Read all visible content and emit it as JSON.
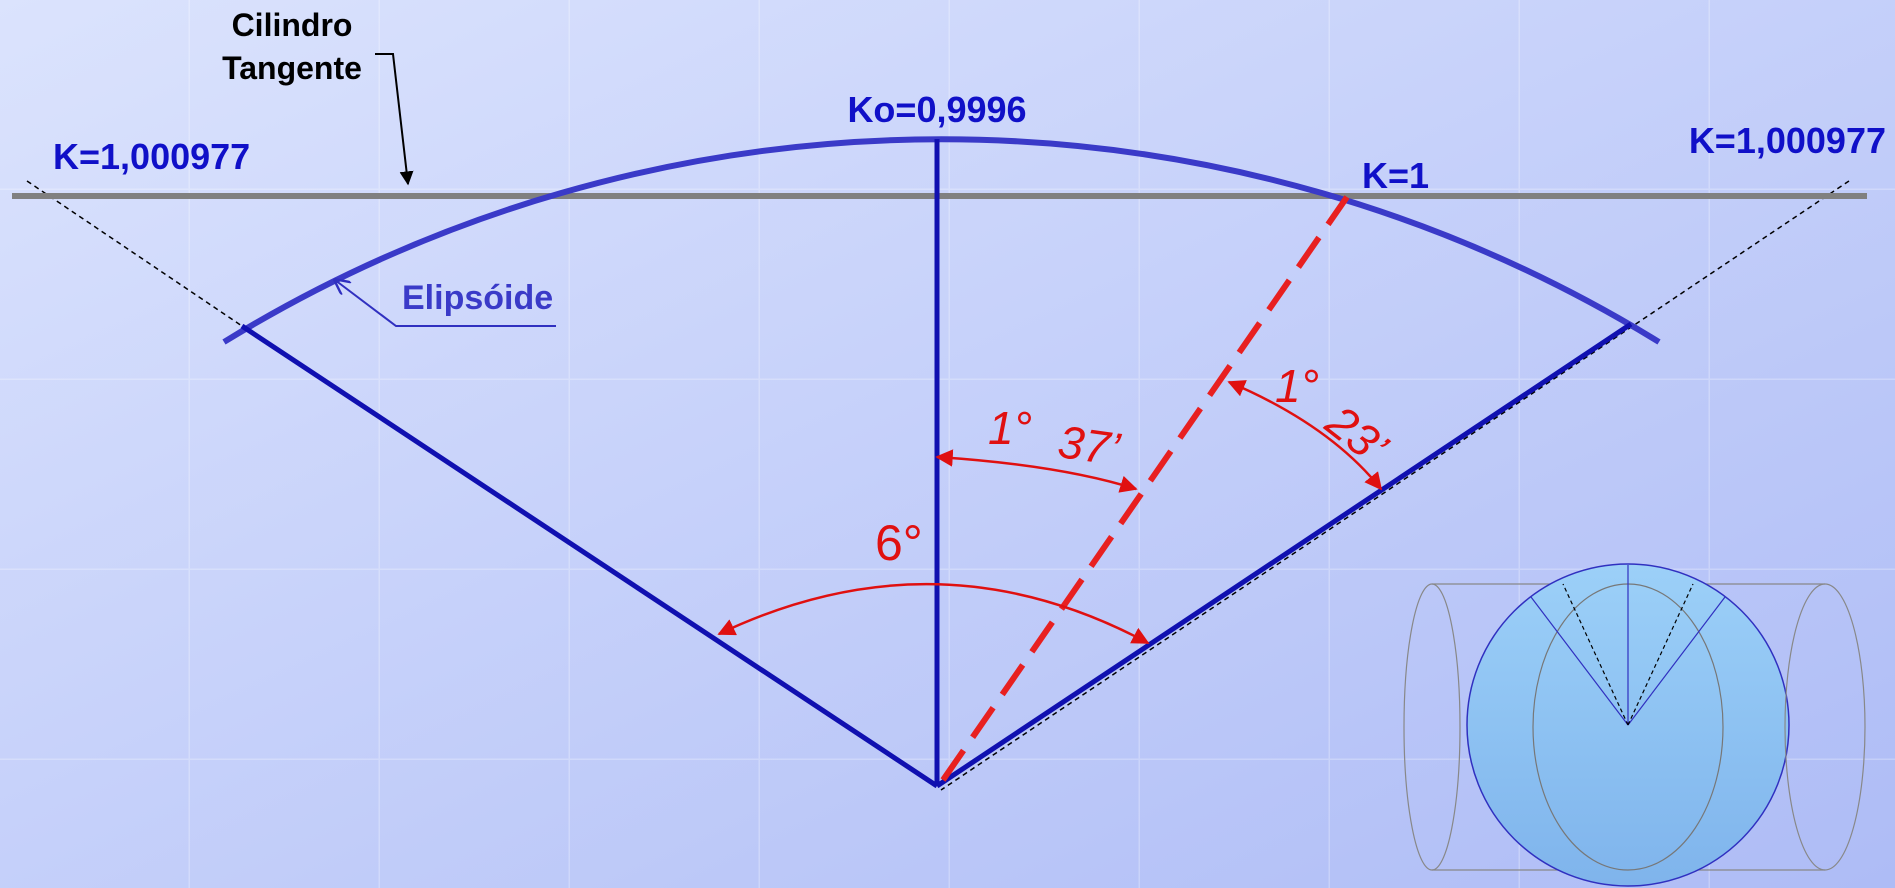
{
  "labels": {
    "cylinder": [
      "Cilindro",
      "Tangente"
    ],
    "ko": "Ko=0,9996",
    "k_left": "K=1,000977",
    "k_right": "K=1,000977",
    "k1": "K=1",
    "ellipsoid": "Elipsóide"
  },
  "angles": {
    "total": "6°",
    "inner": {
      "deg": "1°",
      "min": "37’"
    },
    "outer": {
      "deg": "1°",
      "min": "23’"
    }
  }
}
